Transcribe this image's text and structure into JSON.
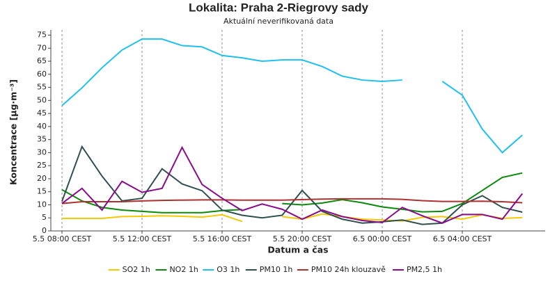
{
  "chart_data": {
    "type": "line",
    "title": "Lokalita: Praha 2-Riegrovy sady",
    "subtitle": "Aktuální neverifikovaná data",
    "x_label": "Datum a čas",
    "y_label": "Koncentrace [µg·m⁻³]",
    "categories": [
      "5.5 08:00 CEST",
      null,
      null,
      null,
      "5.5 12:00 CEST",
      null,
      null,
      null,
      "5.5 16:00 CEST",
      null,
      null,
      null,
      "5.5 20:00 CEST",
      null,
      null,
      null,
      "6.5 00:00 CEST",
      null,
      null,
      null,
      "6.5 04:00 CEST",
      null,
      null,
      null
    ],
    "ylim": [
      0,
      77
    ],
    "yticks": [
      0,
      5,
      10,
      15,
      20,
      25,
      30,
      35,
      40,
      45,
      50,
      55,
      60,
      65,
      70,
      75
    ],
    "grid": true,
    "legend": "bottom",
    "series": [
      {
        "name": "SO2 1h",
        "color": "#f5c800",
        "values": [
          4.8,
          4.8,
          4.8,
          5.5,
          5.6,
          5.8,
          5.6,
          5.3,
          6.2,
          3.6,
          null,
          5.5,
          4.5,
          6.5,
          5.5,
          4.5,
          4.2,
          3.8,
          5.2,
          5.5,
          4.5,
          6.2,
          4.8,
          5.1
        ]
      },
      {
        "name": "NO2 1h",
        "color": "#0a8a0a",
        "values": [
          15.8,
          11.5,
          9,
          8,
          7.5,
          7,
          7,
          7,
          7.8,
          8.2,
          null,
          10.5,
          10,
          10.7,
          12,
          10.8,
          9.2,
          8.3,
          7.3,
          7.5,
          10.5,
          15.5,
          20.5,
          22.2
        ]
      },
      {
        "name": "O3 1h",
        "color": "#1ec0f0",
        "values": [
          48,
          54.8,
          62.5,
          69.3,
          73.5,
          73.5,
          71,
          70.5,
          67.2,
          66.3,
          65,
          65.5,
          65.5,
          63,
          59.3,
          57.8,
          57.3,
          57.8,
          null,
          57.3,
          52,
          39,
          30,
          36.7
        ]
      },
      {
        "name": "PM10 1h",
        "color": "#2f4f4f",
        "values": [
          11.3,
          32.3,
          21,
          11.5,
          12.5,
          23.8,
          18,
          15.4,
          8,
          6,
          5,
          6,
          15.5,
          7.5,
          4.5,
          3,
          3.5,
          4.2,
          2.5,
          3,
          10,
          13.5,
          9,
          7.2
        ]
      },
      {
        "name": "PM10 24h klouzavě",
        "color": "#b03030",
        "values": [
          10.5,
          11.2,
          11.2,
          11.2,
          11.5,
          11.7,
          11.8,
          11.9,
          11.9,
          11.8,
          11.8,
          11.8,
          12.0,
          12.2,
          12.3,
          12.3,
          12.3,
          12.1,
          11.6,
          11.3,
          11.3,
          11.4,
          11.2,
          10.8
        ]
      },
      {
        "name": "PM2,5 1h",
        "color": "#8b0a8b",
        "values": [
          10.5,
          16.3,
          8,
          19,
          14.8,
          16.3,
          32,
          17.8,
          12.5,
          7.8,
          10.3,
          8.3,
          4.5,
          8,
          5.5,
          4,
          3.2,
          9,
          5.8,
          3,
          6.3,
          6.3,
          4.5,
          14.3
        ]
      }
    ]
  }
}
